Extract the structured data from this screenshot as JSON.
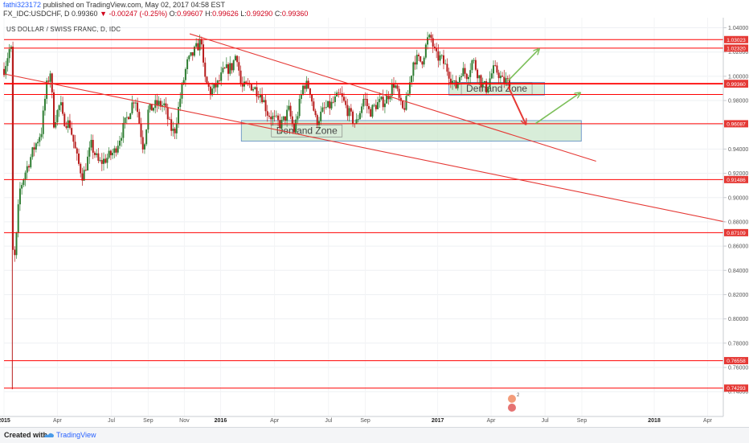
{
  "header": {
    "author": "fathi323172",
    "published_text": "published on TradingView.com, May 02, 2017 04:58 EST",
    "symbol": "FX_IDC:USDCHF, D",
    "last_price": "0.99360",
    "change_arrow": "▼",
    "change_text": "-0.00247 (-0.25%)",
    "o_label": "O:",
    "o_value": "0.99607",
    "h_label": "H:",
    "h_value": "0.99626",
    "l_label": "L:",
    "l_value": "0.99290",
    "c_label": "C:",
    "c_value": "0.99360"
  },
  "chart_title": "US DOLLAR / SWISS FRANC, D, IDC",
  "footer": {
    "created_with": "Created with",
    "brand": "TradingView"
  },
  "colors": {
    "candle_up": "#2e7d32",
    "candle_down": "#b71c1c",
    "level_line": "#ff0000",
    "trend_line": "#e53935",
    "zone_fill": "#c8e6c9",
    "zone_border": "#5b8ac4",
    "arrow_green": "#7cbf5a",
    "arrow_red": "#e53935",
    "level_label_bg": "#e53935",
    "last_price_bg": "#e53935"
  },
  "chart_data": {
    "type": "candlestick",
    "title": "US DOLLAR / SWISS FRANC, D, IDC",
    "xlabel": "",
    "ylabel": "",
    "ylim": [
      0.735,
      1.045
    ],
    "y_ticks": [
      "1.04000",
      "1.02000",
      "1.00000",
      "0.98000",
      "0.96000",
      "0.94000",
      "0.92000",
      "0.90000",
      "0.88000",
      "0.86000",
      "0.84000",
      "0.82000",
      "0.80000",
      "0.78000",
      "0.76000",
      "0.74000"
    ],
    "x_range": [
      "2015-01-01",
      "2018-04-30"
    ],
    "x_ticks": [
      {
        "date": "2015-01-01",
        "label": "2015",
        "bold": true
      },
      {
        "date": "2015-04-01",
        "label": "Apr",
        "bold": false
      },
      {
        "date": "2015-07-01",
        "label": "Jul",
        "bold": false
      },
      {
        "date": "2015-09-01",
        "label": "Sep",
        "bold": false
      },
      {
        "date": "2015-11-01",
        "label": "Nov",
        "bold": false
      },
      {
        "date": "2016-01-01",
        "label": "2016",
        "bold": true
      },
      {
        "date": "2016-04-01",
        "label": "Apr",
        "bold": false
      },
      {
        "date": "2016-07-01",
        "label": "Jul",
        "bold": false
      },
      {
        "date": "2016-09-01",
        "label": "Sep",
        "bold": false
      },
      {
        "date": "2017-01-01",
        "label": "2017",
        "bold": true
      },
      {
        "date": "2017-04-01",
        "label": "Apr",
        "bold": false
      },
      {
        "date": "2017-07-01",
        "label": "Jul",
        "bold": false
      },
      {
        "date": "2017-09-01",
        "label": "Sep",
        "bold": false
      },
      {
        "date": "2018-01-01",
        "label": "2018",
        "bold": true
      },
      {
        "date": "2018-04-01",
        "label": "Apr",
        "bold": false
      }
    ],
    "price_path": [
      [
        "2015-01-01",
        1.006
      ],
      [
        "2015-01-10",
        1.022
      ],
      [
        "2015-01-14",
        1.021
      ],
      [
        "2015-01-15",
        0.86
      ],
      [
        "2015-01-18",
        0.845
      ],
      [
        "2015-01-22",
        0.868
      ],
      [
        "2015-01-27",
        0.905
      ],
      [
        "2015-02-05",
        0.92
      ],
      [
        "2015-02-20",
        0.94
      ],
      [
        "2015-03-05",
        0.955
      ],
      [
        "2015-03-13",
        0.99
      ],
      [
        "2015-03-20",
        1.004
      ],
      [
        "2015-03-26",
        0.962
      ],
      [
        "2015-04-06",
        0.978
      ],
      [
        "2015-04-10",
        0.965
      ],
      [
        "2015-04-22",
        0.96
      ],
      [
        "2015-05-05",
        0.93
      ],
      [
        "2015-05-14",
        0.917
      ],
      [
        "2015-05-28",
        0.943
      ],
      [
        "2015-06-10",
        0.928
      ],
      [
        "2015-06-22",
        0.932
      ],
      [
        "2015-07-06",
        0.938
      ],
      [
        "2015-07-20",
        0.956
      ],
      [
        "2015-08-01",
        0.972
      ],
      [
        "2015-08-10",
        0.984
      ],
      [
        "2015-08-24",
        0.94
      ],
      [
        "2015-09-01",
        0.971
      ],
      [
        "2015-09-15",
        0.977
      ],
      [
        "2015-09-28",
        0.976
      ],
      [
        "2015-10-08",
        0.958
      ],
      [
        "2015-10-15",
        0.953
      ],
      [
        "2015-10-26",
        0.985
      ],
      [
        "2015-11-05",
        1.01
      ],
      [
        "2015-11-20",
        1.022
      ],
      [
        "2015-11-30",
        1.03
      ],
      [
        "2015-12-04",
        0.999
      ],
      [
        "2015-12-15",
        0.987
      ],
      [
        "2015-12-28",
        0.994
      ],
      [
        "2016-01-06",
        1.004
      ],
      [
        "2016-01-20",
        1.008
      ],
      [
        "2016-01-28",
        1.02
      ],
      [
        "2016-02-05",
        0.99
      ],
      [
        "2016-02-20",
        0.993
      ],
      [
        "2016-03-10",
        0.985
      ],
      [
        "2016-03-20",
        0.97
      ],
      [
        "2016-04-01",
        0.964
      ],
      [
        "2016-04-12",
        0.96
      ],
      [
        "2016-04-25",
        0.972
      ],
      [
        "2016-05-04",
        0.955
      ],
      [
        "2016-05-20",
        0.994
      ],
      [
        "2016-05-30",
        0.991
      ],
      [
        "2016-06-10",
        0.962
      ],
      [
        "2016-06-24",
        0.973
      ],
      [
        "2016-07-05",
        0.976
      ],
      [
        "2016-07-20",
        0.985
      ],
      [
        "2016-08-05",
        0.969
      ],
      [
        "2016-08-16",
        0.96
      ],
      [
        "2016-08-30",
        0.983
      ],
      [
        "2016-09-08",
        0.97
      ],
      [
        "2016-09-20",
        0.977
      ],
      [
        "2016-10-05",
        0.98
      ],
      [
        "2016-10-20",
        0.995
      ],
      [
        "2016-11-02",
        0.971
      ],
      [
        "2016-11-10",
        0.98
      ],
      [
        "2016-11-22",
        1.015
      ],
      [
        "2016-12-05",
        1.012
      ],
      [
        "2016-12-15",
        1.03
      ],
      [
        "2016-12-21",
        1.031
      ],
      [
        "2016-12-29",
        1.016
      ],
      [
        "2017-01-06",
        1.015
      ],
      [
        "2017-01-18",
        1.005
      ],
      [
        "2017-01-31",
        0.99
      ],
      [
        "2017-02-10",
        1.005
      ],
      [
        "2017-02-20",
        1.001
      ],
      [
        "2017-03-01",
        1.014
      ],
      [
        "2017-03-16",
        0.994
      ],
      [
        "2017-03-24",
        0.99
      ],
      [
        "2017-04-04",
        1.005
      ],
      [
        "2017-04-12",
        1.004
      ],
      [
        "2017-04-20",
        0.996
      ],
      [
        "2017-04-28",
        0.9961
      ],
      [
        "2017-05-02",
        0.9936
      ]
    ],
    "horizontal_levels": [
      "1.03023",
      "1.02320",
      "0.99414",
      "0.99360",
      "0.98500",
      "0.96087",
      "0.91486",
      "0.87109",
      "0.76558",
      "0.74293"
    ],
    "level_label_values": [
      "1.03023",
      "1.02320",
      "0.99414",
      "0.99360",
      "0.96087",
      "0.91486",
      "0.87109",
      "0.76558",
      "0.74293"
    ],
    "trend_lines": [
      {
        "from": [
          "2015-11-10",
          1.035
        ],
        "to": [
          "2017-09-25",
          0.93
        ]
      },
      {
        "from": [
          "2015-01-01",
          1.002
        ],
        "to": [
          "2018-04-30",
          0.88
        ]
      }
    ],
    "zones": [
      {
        "label": "Demand Zone",
        "x_from": "2017-01-20",
        "x_to": "2017-06-30",
        "y_from": 0.9845,
        "y_to": 0.995
      },
      {
        "label": "Demand Zone",
        "x_from": "2016-02-05",
        "x_to": "2017-08-31",
        "y_from": 0.9465,
        "y_to": 0.9635
      }
    ],
    "arrows": [
      {
        "color": "green",
        "from": [
          "2017-04-30",
          0.9965
        ],
        "to": [
          "2017-06-20",
          1.022
        ]
      },
      {
        "color": "red",
        "from": [
          "2017-04-30",
          0.9915
        ],
        "to": [
          "2017-05-29",
          0.961
        ]
      },
      {
        "color": "green",
        "from": [
          "2017-06-15",
          0.961
        ],
        "to": [
          "2017-08-28",
          0.986
        ]
      }
    ]
  }
}
